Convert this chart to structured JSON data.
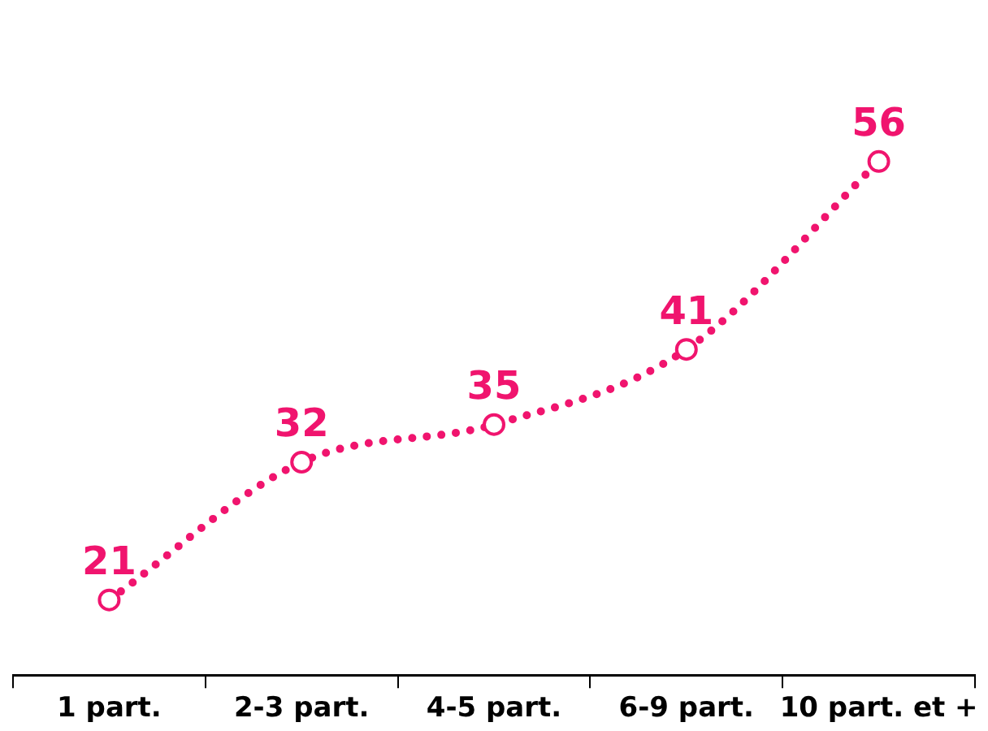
{
  "chart_data": {
    "type": "line",
    "categories": [
      "1 part.",
      "2-3 part.",
      "4-5 part.",
      "6-9 part.",
      "10 part. et +"
    ],
    "series": [
      {
        "color": "#f0146e",
        "values": [
          21,
          32,
          35,
          41,
          56
        ]
      }
    ],
    "marker": "circle",
    "line_style": "dotted",
    "data_labels": true,
    "relative": false
  }
}
